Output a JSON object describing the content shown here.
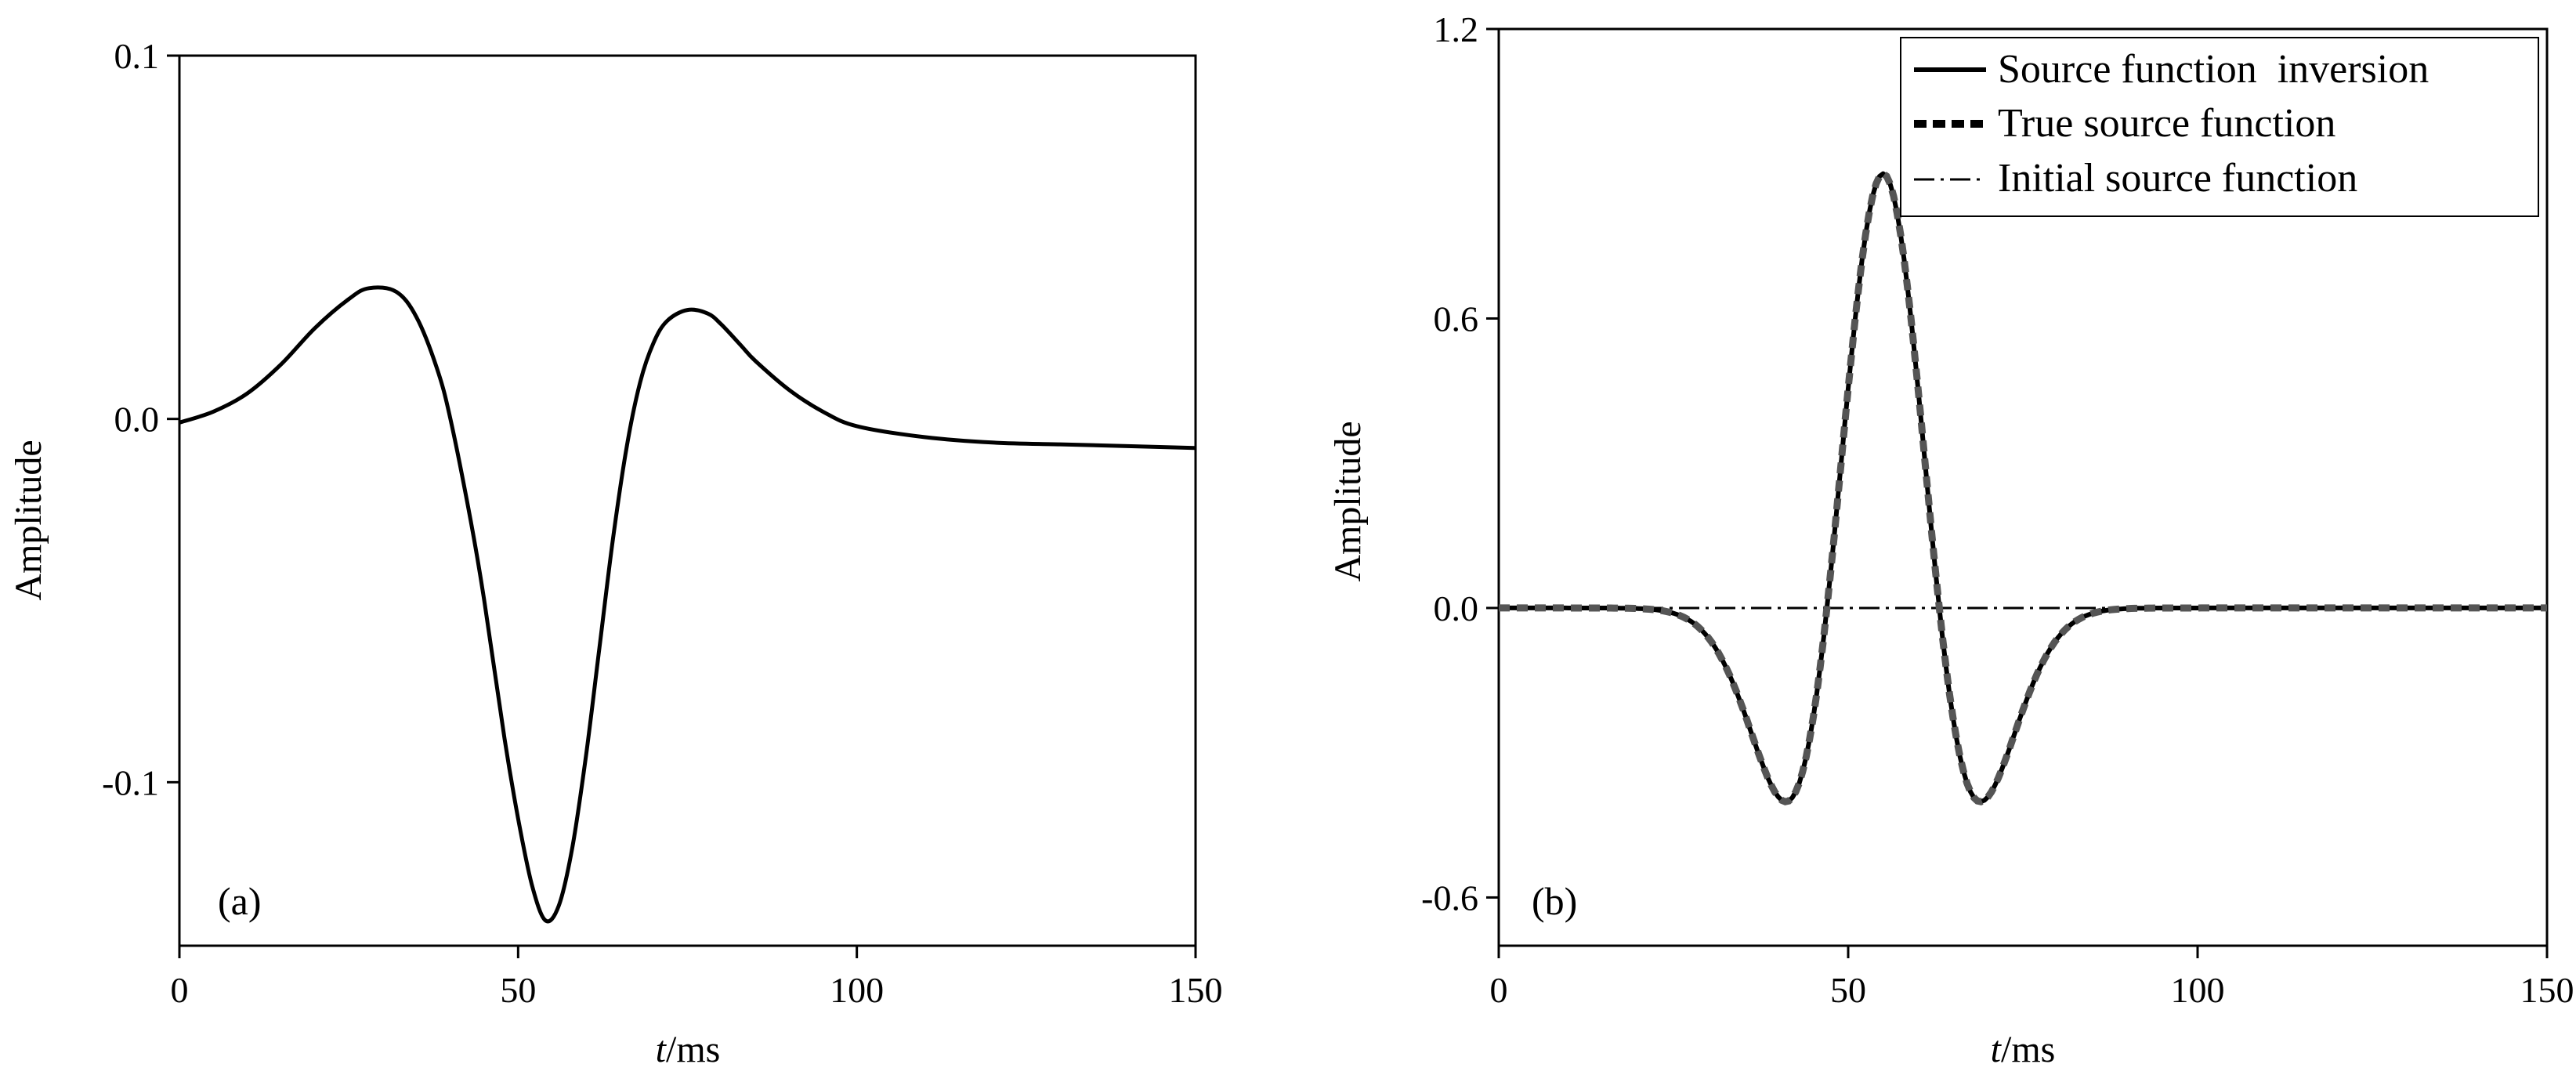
{
  "chart_data": [
    {
      "type": "line",
      "panel_label": "(a)",
      "xlabel_italic": "t",
      "xlabel_unit": "/ms",
      "ylabel": "Amplitude",
      "xlim": [
        0,
        150
      ],
      "ylim": [
        -0.145,
        0.1
      ],
      "xticks": [
        0,
        50,
        100,
        150
      ],
      "xtick_labels": [
        "0",
        "50",
        "100",
        "150"
      ],
      "yticks": [
        0.1,
        0.0,
        -0.1
      ],
      "ytick_labels": [
        "0.1",
        "0.0",
        "-0.1"
      ],
      "grid": false,
      "series": [
        {
          "style": "solid",
          "x": [
            0,
            5,
            10,
            15,
            20,
            25,
            28,
            32,
            35,
            38,
            40,
            43,
            45,
            48,
            50,
            52,
            54,
            56,
            58,
            60,
            62,
            64,
            66,
            68,
            70,
            72,
            75,
            78,
            80,
            83,
            85,
            90,
            95,
            100,
            110,
            120,
            130,
            140,
            150
          ],
          "y": [
            -0.001,
            0.002,
            0.007,
            0.015,
            0.025,
            0.033,
            0.036,
            0.035,
            0.028,
            0.014,
            0.0,
            -0.028,
            -0.05,
            -0.088,
            -0.11,
            -0.128,
            -0.138,
            -0.134,
            -0.118,
            -0.093,
            -0.063,
            -0.033,
            -0.008,
            0.01,
            0.021,
            0.027,
            0.03,
            0.029,
            0.026,
            0.02,
            0.016,
            0.008,
            0.002,
            -0.002,
            -0.005,
            -0.0065,
            -0.007,
            -0.0075,
            -0.008
          ],
          "color": "#000000"
        }
      ]
    },
    {
      "type": "line",
      "panel_label": "(b)",
      "xlabel_italic": "t",
      "xlabel_unit": "/ms",
      "ylabel": "Amplitude",
      "xlim": [
        0,
        150
      ],
      "ylim": [
        -0.7,
        1.2
      ],
      "xticks": [
        0,
        50,
        100,
        150
      ],
      "xtick_labels": [
        "0",
        "50",
        "100",
        "150"
      ],
      "yticks": [
        1.2,
        0.6,
        0.0,
        -0.6
      ],
      "ytick_labels": [
        "1.2",
        "0.6",
        "0.0",
        "-0.6"
      ],
      "grid": false,
      "legend_position": "top-right",
      "ricker": {
        "center": 55,
        "peak_frequency_hz": 28,
        "amplitude": 0.9,
        "active_range": [
          5,
          105
        ]
      },
      "series": [
        {
          "name": "Source function  inversion",
          "style": "solid",
          "color": "#000000"
        },
        {
          "name": "True source function",
          "style": "dashed",
          "color": "#000000"
        },
        {
          "name": "Initial source function",
          "style": "dashdot",
          "color": "#000000",
          "constant": 0.0
        }
      ]
    }
  ]
}
